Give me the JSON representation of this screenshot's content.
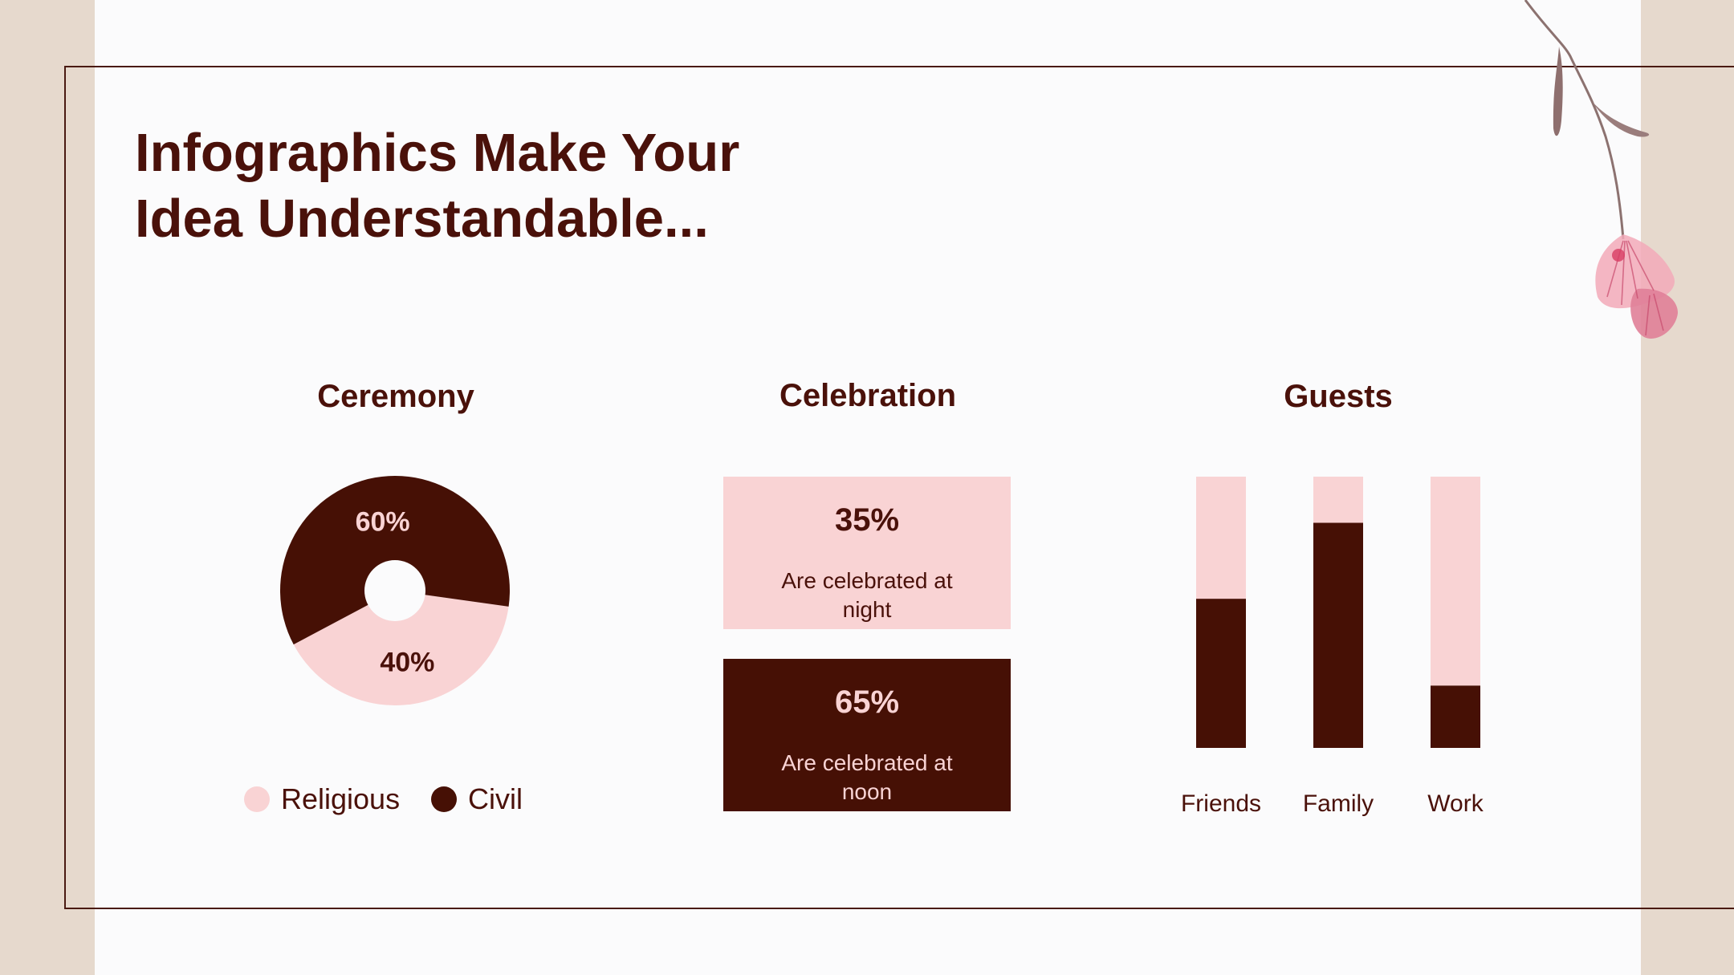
{
  "title": {
    "line1": "Infographics Make Your",
    "line2": "Idea Understandable..."
  },
  "colors": {
    "dark": "#461005",
    "light": "#f9d3d4",
    "text": "#4a110a",
    "frame": "#4a1a12",
    "side": "#e6d9cd"
  },
  "icons": {
    "decoration": "flower-branch-icon"
  },
  "chart_data": [
    {
      "type": "pie",
      "title": "Ceremony",
      "categories": [
        "Religious",
        "Civil"
      ],
      "values": [
        40,
        60
      ],
      "labels": [
        "40%",
        "60%"
      ],
      "legend": "bottom"
    },
    {
      "type": "table",
      "title": "Celebration",
      "rows": [
        {
          "value": "35%",
          "text_line1": "Are celebrated at",
          "text_line2": "night"
        },
        {
          "value": "65%",
          "text_line1": "Are celebrated at",
          "text_line2": "noon"
        }
      ]
    },
    {
      "type": "bar",
      "title": "Guests",
      "categories": [
        "Friends",
        "Family",
        "Work"
      ],
      "series": [
        {
          "values": [
            55,
            83,
            23
          ]
        },
        {
          "values": [
            45,
            17,
            77
          ]
        }
      ],
      "ylim": [
        0,
        100
      ],
      "stacked": true
    }
  ]
}
